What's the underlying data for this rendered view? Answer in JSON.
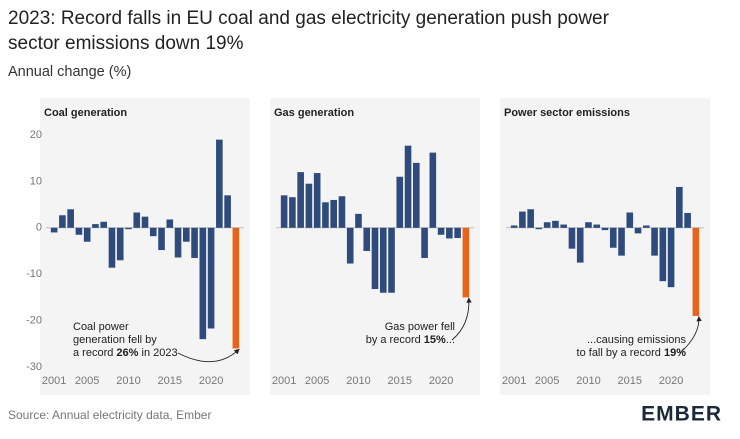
{
  "header": {
    "title": [
      "2023: Record falls in EU coal and gas electricity generation push power",
      "sector emissions down 19%"
    ],
    "subtitle": "Annual change (%)"
  },
  "footer": {
    "source": "Source: Annual electricity data, Ember",
    "logo": "EMBER"
  },
  "chart_data": [
    {
      "type": "bar",
      "title": "Coal generation",
      "x": [
        2001,
        2002,
        2003,
        2004,
        2005,
        2006,
        2007,
        2008,
        2009,
        2010,
        2011,
        2012,
        2013,
        2014,
        2015,
        2016,
        2017,
        2018,
        2019,
        2020,
        2021,
        2022,
        2023
      ],
      "values": [
        -1,
        2.7,
        4,
        -1.5,
        -3,
        0.8,
        1.3,
        -8.6,
        -7,
        -0.3,
        3.3,
        2.4,
        -1.8,
        -4.8,
        1.8,
        -6.4,
        -3,
        -6.5,
        -24,
        -21.7,
        19,
        7,
        -26
      ],
      "color": "#2f4b7c",
      "highlight_color": "#e8641b",
      "xlim": [
        2000.5,
        2023.5
      ],
      "xticks": [
        2001,
        2005,
        2010,
        2015,
        2020
      ],
      "ylim": [
        -30,
        20
      ],
      "yticks": [
        -30,
        -20,
        -10,
        0,
        10,
        20
      ],
      "annotation": [
        [
          {
            "text": "Coal power"
          }
        ],
        [
          {
            "text": "generation fell by"
          }
        ],
        [
          {
            "text": "a record "
          },
          {
            "text": "26%",
            "bold": true
          },
          {
            "text": " in 2023"
          }
        ]
      ]
    },
    {
      "type": "bar",
      "title": "Gas generation",
      "x": [
        2001,
        2002,
        2003,
        2004,
        2005,
        2006,
        2007,
        2008,
        2009,
        2010,
        2011,
        2012,
        2013,
        2014,
        2015,
        2016,
        2017,
        2018,
        2019,
        2020,
        2021,
        2022,
        2023
      ],
      "values": [
        7,
        6.6,
        12,
        9.5,
        11.8,
        5.5,
        6,
        6.8,
        -7.7,
        3,
        -5,
        -13.2,
        -14,
        -14,
        11,
        17.7,
        14,
        -6.5,
        16.2,
        -1.5,
        -2.3,
        -2.2,
        -15
      ],
      "color": "#2f4b7c",
      "highlight_color": "#e8641b",
      "xlim": [
        2000.5,
        2023.5
      ],
      "xticks": [
        2001,
        2005,
        2010,
        2015,
        2020
      ],
      "ylim": [
        -30,
        20
      ],
      "annotation": [
        [
          {
            "text": "Gas power fell"
          }
        ],
        [
          {
            "text": "by a record "
          },
          {
            "text": "15%",
            "bold": true
          },
          {
            "text": "..."
          }
        ]
      ]
    },
    {
      "type": "bar",
      "title": "Power sector emissions",
      "x": [
        2001,
        2002,
        2003,
        2004,
        2005,
        2006,
        2007,
        2008,
        2009,
        2010,
        2011,
        2012,
        2013,
        2014,
        2015,
        2016,
        2017,
        2018,
        2019,
        2020,
        2021,
        2022,
        2023
      ],
      "values": [
        0.5,
        3.5,
        4,
        -0.3,
        1.2,
        1.5,
        0.7,
        -4.5,
        -7.5,
        1.2,
        0.7,
        -0.5,
        -4.3,
        -6,
        3.3,
        -1.2,
        0.5,
        -6,
        -11.5,
        -12.8,
        8.8,
        3.2,
        -19
      ],
      "color": "#2f4b7c",
      "highlight_color": "#e8641b",
      "xlim": [
        2000.5,
        2023.5
      ],
      "xticks": [
        2001,
        2005,
        2010,
        2015,
        2020
      ],
      "ylim": [
        -30,
        20
      ],
      "annotation": [
        [
          {
            "text": "...causing emissions"
          }
        ],
        [
          {
            "text": "to fall by a record "
          },
          {
            "text": "19%",
            "bold": true
          }
        ]
      ]
    }
  ]
}
